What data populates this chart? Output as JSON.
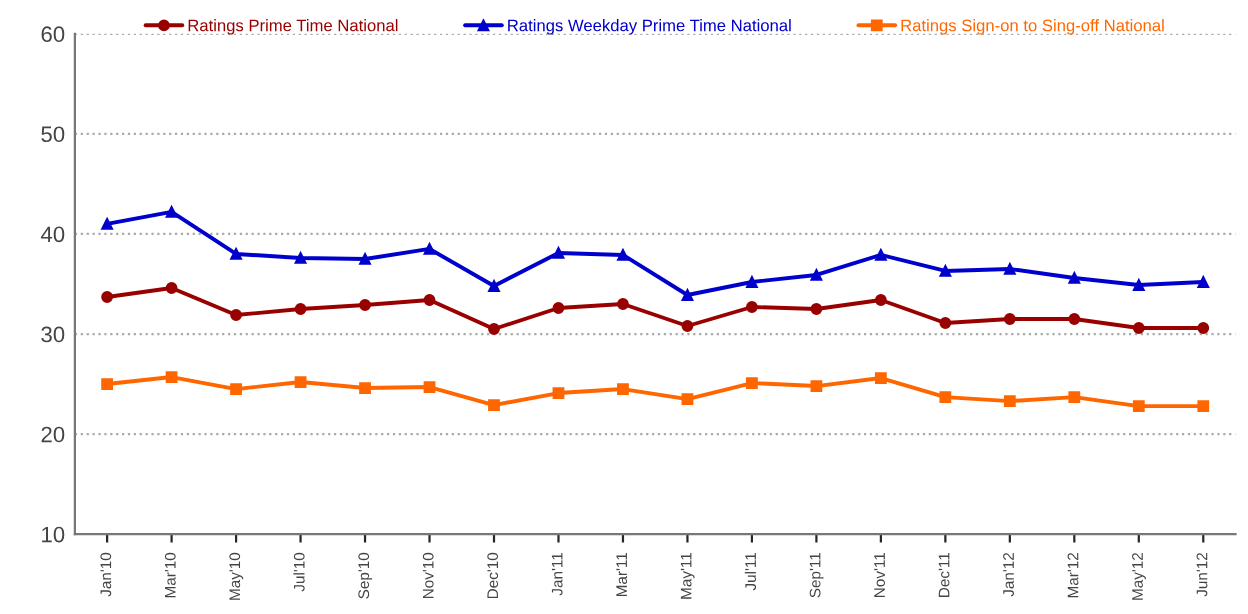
{
  "chart_data": {
    "type": "line",
    "categories": [
      "Jan'10",
      "Mar'10",
      "May'10",
      "Jul'10",
      "Sep'10",
      "Nov'10",
      "Dec'10",
      "Jan'11",
      "Mar'11",
      "May'11",
      "Jul'11",
      "Sep'11",
      "Nov'11",
      "Dec'11",
      "Jan'12",
      "Mar'12",
      "May'12",
      "Jun'12"
    ],
    "series": [
      {
        "name": "Ratings Prime Time National",
        "color": "#990000",
        "marker": "circle",
        "values": [
          33.7,
          34.6,
          31.9,
          32.5,
          32.9,
          33.4,
          30.5,
          32.6,
          33.0,
          30.8,
          32.7,
          32.5,
          33.4,
          31.1,
          31.5,
          31.5,
          30.6,
          30.6
        ]
      },
      {
        "name": "Ratings Weekday Prime Time National",
        "color": "#0000cc",
        "marker": "triangle",
        "values": [
          41.0,
          42.2,
          38.0,
          37.6,
          37.5,
          38.5,
          34.8,
          38.1,
          37.9,
          33.9,
          35.2,
          35.9,
          37.9,
          36.3,
          36.5,
          35.6,
          34.9,
          35.2
        ]
      },
      {
        "name": "Ratings Sign-on to Sing-off National",
        "color": "#ff6600",
        "marker": "square",
        "values": [
          25.0,
          25.7,
          24.5,
          25.2,
          24.6,
          24.7,
          22.9,
          24.1,
          24.5,
          23.5,
          25.1,
          24.8,
          25.6,
          23.7,
          23.3,
          23.7,
          22.8,
          22.8
        ]
      }
    ],
    "ylim": [
      10,
      60
    ],
    "yticks": [
      10,
      20,
      30,
      40,
      50,
      60
    ],
    "grid": "y",
    "legend": "top",
    "line_style": "solid"
  }
}
